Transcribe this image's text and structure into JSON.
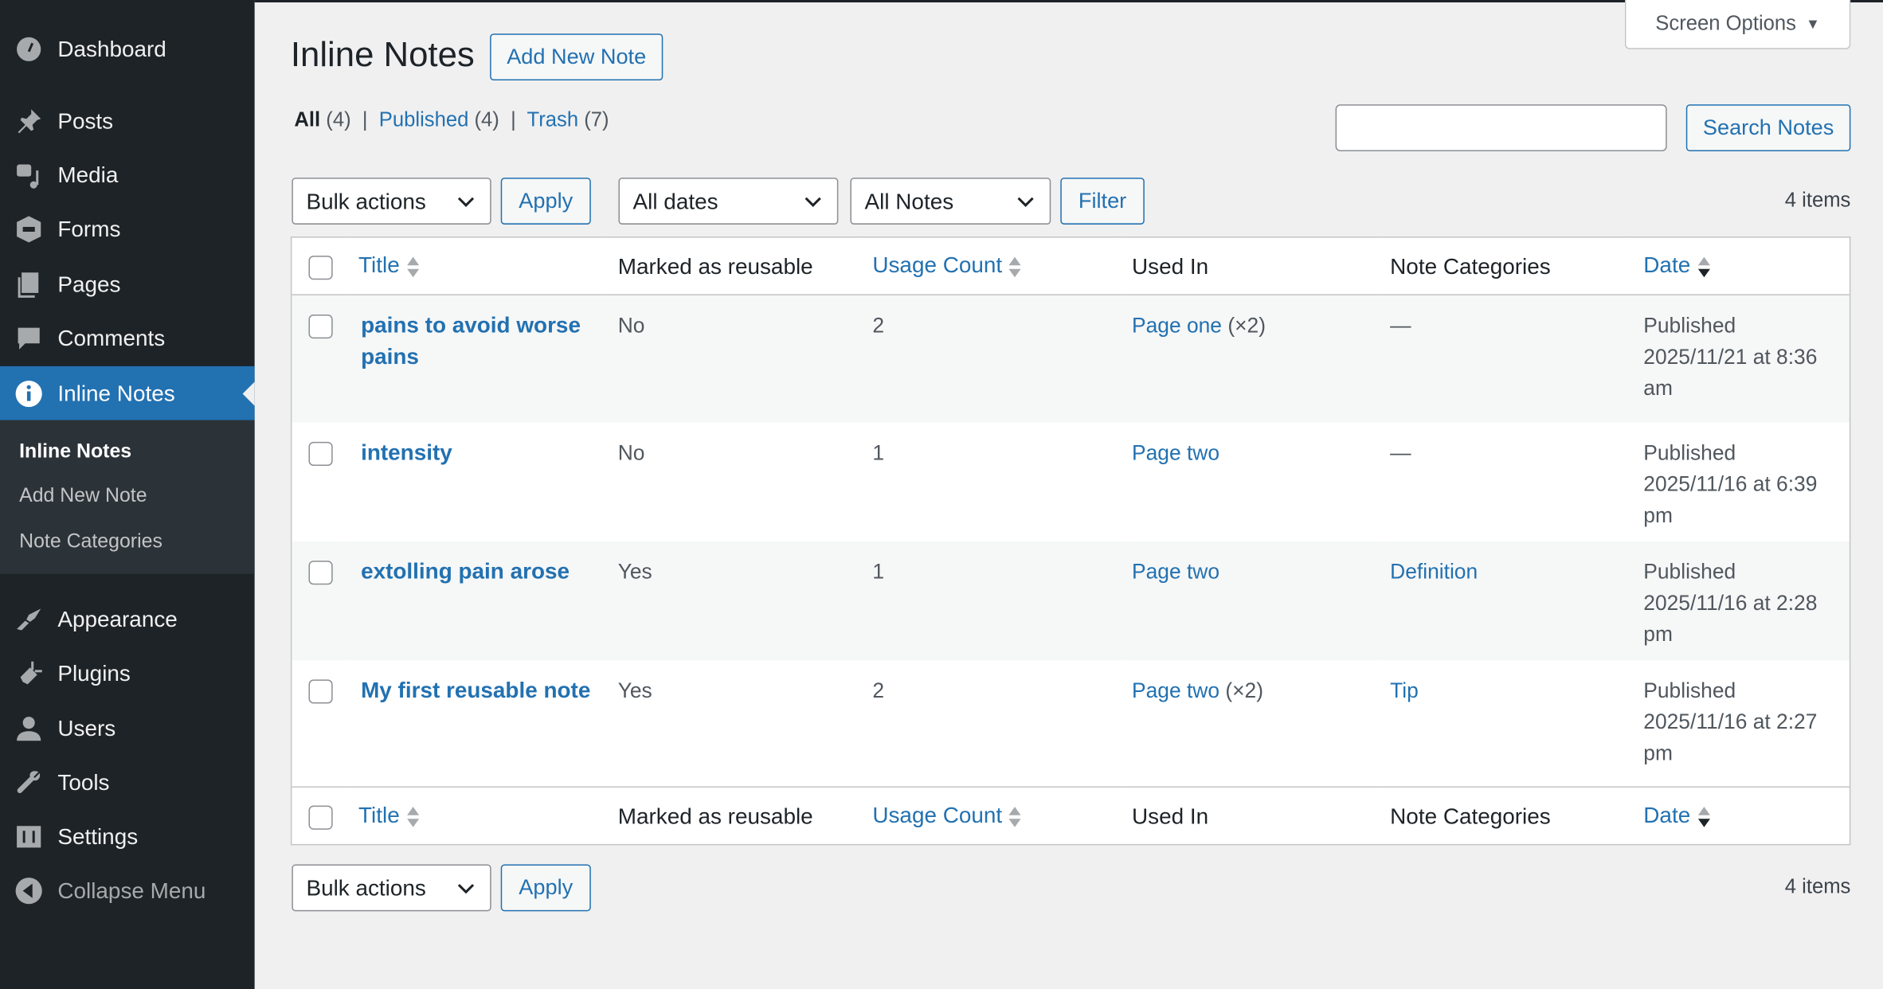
{
  "sidebar": {
    "items": [
      {
        "label": "Dashboard",
        "icon": "dashboard-icon"
      },
      {
        "label": "Posts",
        "icon": "pin-icon"
      },
      {
        "label": "Media",
        "icon": "media-icon"
      },
      {
        "label": "Forms",
        "icon": "forms-icon"
      },
      {
        "label": "Pages",
        "icon": "pages-icon"
      },
      {
        "label": "Comments",
        "icon": "comment-icon"
      },
      {
        "label": "Inline Notes",
        "icon": "info-icon",
        "active": true
      },
      {
        "label": "Appearance",
        "icon": "brush-icon"
      },
      {
        "label": "Plugins",
        "icon": "plugin-icon"
      },
      {
        "label": "Users",
        "icon": "user-icon"
      },
      {
        "label": "Tools",
        "icon": "wrench-icon"
      },
      {
        "label": "Settings",
        "icon": "settings-icon"
      }
    ],
    "submenu": [
      "Inline Notes",
      "Add New Note",
      "Note Categories"
    ],
    "collapse": "Collapse Menu"
  },
  "header": {
    "title": "Inline Notes",
    "add_new": "Add New Note",
    "screen_options": "Screen Options"
  },
  "views": {
    "all": "All",
    "all_count": "(4)",
    "published": "Published",
    "published_count": "(4)",
    "trash": "Trash",
    "trash_count": "(7)"
  },
  "search": {
    "value": "",
    "button": "Search Notes"
  },
  "filters": {
    "bulk": "Bulk actions",
    "apply": "Apply",
    "dates": "All dates",
    "notes": "All Notes",
    "filter": "Filter",
    "count": "4 items"
  },
  "table": {
    "columns": [
      "Title",
      "Marked as reusable",
      "Usage Count",
      "Used In",
      "Note Categories",
      "Date"
    ],
    "rows": [
      {
        "title": "pains to avoid worse pains",
        "reusable": "No",
        "usage": "2",
        "used_in": "Page one",
        "used_mult": " (×2)",
        "category": "—",
        "category_link": false,
        "status": "Published",
        "date": "2025/11/21 at 8:36 am"
      },
      {
        "title": "intensity",
        "reusable": "No",
        "usage": "1",
        "used_in": "Page two",
        "used_mult": "",
        "category": "—",
        "category_link": false,
        "status": "Published",
        "date": "2025/11/16 at 6:39 pm"
      },
      {
        "title": "extolling pain arose",
        "reusable": "Yes",
        "usage": "1",
        "used_in": "Page two",
        "used_mult": "",
        "category": "Definition",
        "category_link": true,
        "status": "Published",
        "date": "2025/11/16 at 2:28 pm"
      },
      {
        "title": "My first reusable note",
        "reusable": "Yes",
        "usage": "2",
        "used_in": "Page two",
        "used_mult": " (×2)",
        "category": "Tip",
        "category_link": true,
        "status": "Published",
        "date": "2025/11/16 at 2:27 pm"
      }
    ]
  },
  "colors": {
    "accent": "#2271b1",
    "sidebar": "#1d2327",
    "submenu": "#2c3338",
    "background": "#f0f0f1"
  }
}
